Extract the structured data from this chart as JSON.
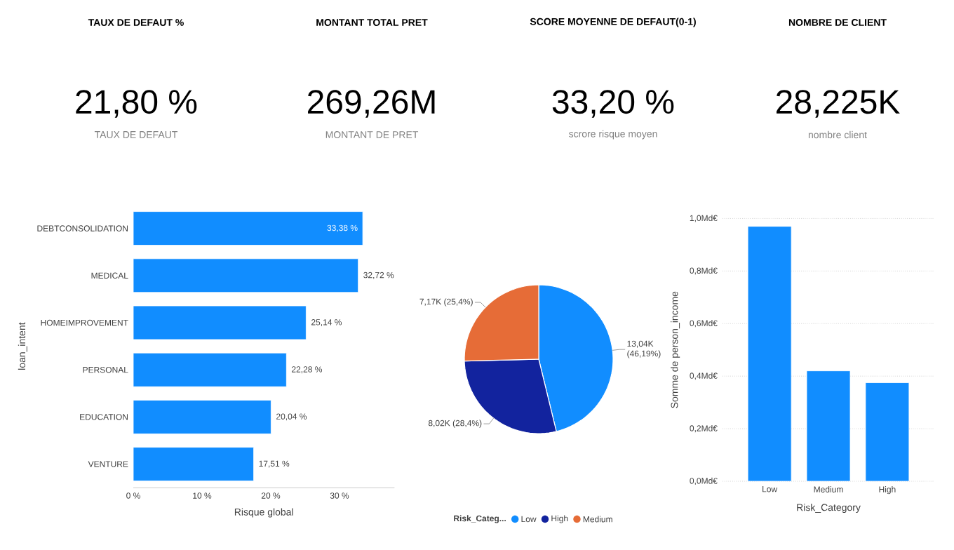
{
  "chart_data": [
    {
      "type": "other",
      "title": "TAUX DE DEFAUT %",
      "annotations": [
        "21,80 %",
        "TAUX DE DEFAUT"
      ]
    },
    {
      "type": "other",
      "title": "MONTANT TOTAL PRET",
      "annotations": [
        "269,26M",
        "MONTANT DE PRET"
      ]
    },
    {
      "type": "other",
      "title": "SCORE MOYENNE DE DEFAUT(0-1)",
      "annotations": [
        "33,20 %",
        "scrore risque moyen"
      ]
    },
    {
      "type": "other",
      "title": "NOMBRE DE CLIENT",
      "annotations": [
        "28,225K",
        "nombre client"
      ]
    },
    {
      "type": "bar",
      "orientation": "horizontal",
      "xlabel": "Risque global",
      "ylabel": "loan_intent",
      "categories": [
        "DEBTCONSOLIDATION",
        "MEDICAL",
        "HOMEIMPROVEMENT",
        "PERSONAL",
        "EDUCATION",
        "VENTURE"
      ],
      "values": [
        33.38,
        32.72,
        25.14,
        22.28,
        20.04,
        17.51
      ],
      "value_labels": [
        "33,38 %",
        "32,72 %",
        "25,14 %",
        "22,28 %",
        "20,04 %",
        "17,51 %"
      ],
      "color": "#118dff",
      "xlim": [
        0,
        38
      ],
      "xticks": [
        {
          "value": 0,
          "label": "0 %"
        },
        {
          "value": 10,
          "label": "10 %"
        },
        {
          "value": 20,
          "label": "20 %"
        },
        {
          "value": 30,
          "label": "30 %"
        }
      ]
    },
    {
      "type": "pie",
      "legend": "bottom",
      "legend_title": "Risk_Categ...",
      "categories": [
        "Low",
        "High",
        "Medium"
      ],
      "values": [
        13040,
        8020,
        7170
      ],
      "value_labels": [
        "13,04K (46,19%)",
        "8,02K (28,4%)",
        "7,17K (25,4%)"
      ],
      "colors": [
        "#118dff",
        "#12239e",
        "#e66c37"
      ]
    },
    {
      "type": "bar",
      "xlabel": "Risk_Category",
      "ylabel": "Somme de person_income",
      "categories": [
        "Low",
        "Medium",
        "High"
      ],
      "values": [
        0.97,
        0.42,
        0.375
      ],
      "color": "#118dff",
      "ylim": [
        0,
        1
      ],
      "grid": "y",
      "yticks": [
        {
          "value": 0,
          "label": "0,0Md€"
        },
        {
          "value": 0.2,
          "label": "0,2Md€"
        },
        {
          "value": 0.4,
          "label": "0,4Md€"
        },
        {
          "value": 0.6,
          "label": "0,6Md€"
        },
        {
          "value": 0.8,
          "label": "0,8Md€"
        },
        {
          "value": 1,
          "label": "1,0Md€"
        }
      ]
    }
  ]
}
